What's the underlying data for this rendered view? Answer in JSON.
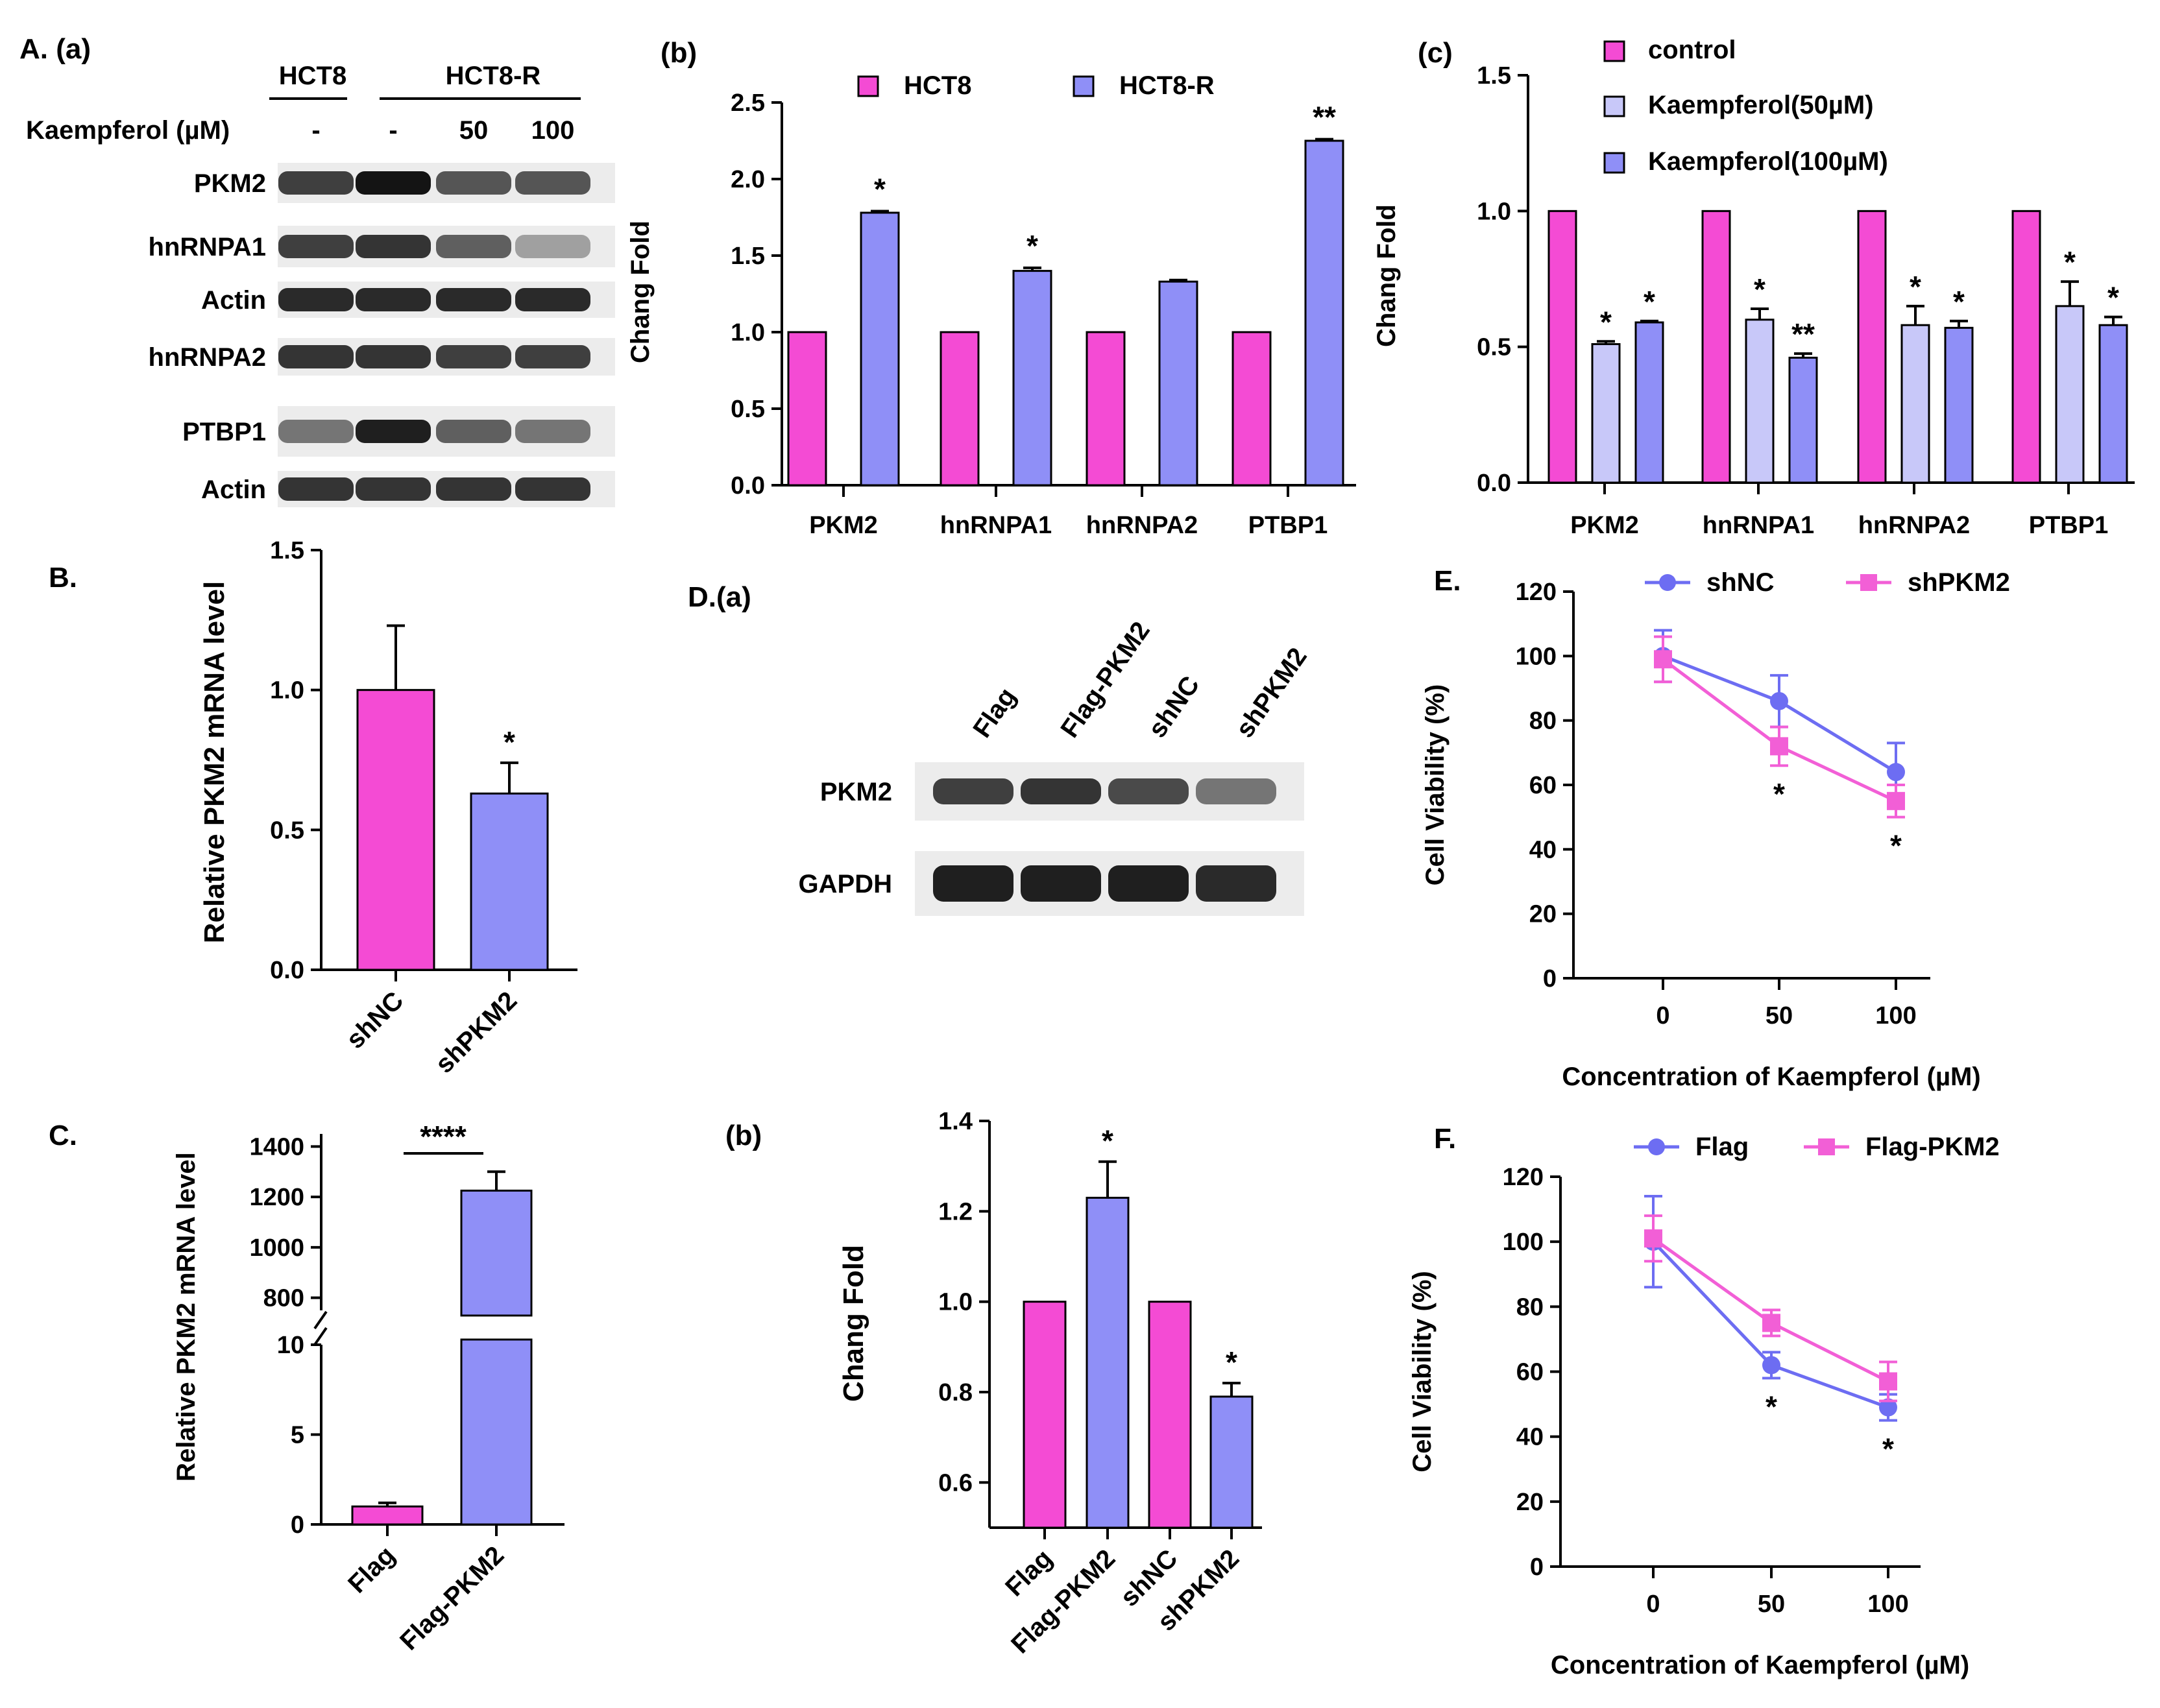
{
  "colors": {
    "magenta": "#f44bd4",
    "purple": "#8f8ff7",
    "light_purple": "#c8c8f9",
    "line_blue": "#6d6df2",
    "line_pink": "#f25fd6",
    "band_dark": "#1e1e1e",
    "band_bg": "#ececec"
  },
  "westerns": [
    {
      "id": "A_a",
      "panel_label": "A. (a)",
      "group_labels": [
        "HCT8",
        "HCT8-R"
      ],
      "treatment_label": "Kaempferol (µM)",
      "treatment_values": [
        "-",
        "-",
        "50",
        "100"
      ],
      "rows": [
        {
          "label": "PKM2",
          "intensity": [
            0.8,
            1.0,
            0.7,
            0.7
          ]
        },
        {
          "label": "hnRNPA1",
          "intensity": [
            0.8,
            0.85,
            0.65,
            0.35
          ]
        },
        {
          "label": "Actin",
          "intensity": [
            0.9,
            0.9,
            0.9,
            0.9
          ]
        },
        {
          "label": "hnRNPA2",
          "intensity": [
            0.85,
            0.85,
            0.8,
            0.8
          ]
        },
        {
          "label": "PTBP1",
          "intensity": [
            0.55,
            0.95,
            0.65,
            0.55
          ]
        },
        {
          "label": "Actin",
          "intensity": [
            0.85,
            0.85,
            0.85,
            0.85
          ]
        }
      ]
    },
    {
      "id": "D_a",
      "panel_label": "D.(a)",
      "lane_labels": [
        "Flag",
        "Flag-PKM2",
        "shNC",
        "shPKM2"
      ],
      "rows": [
        {
          "label": "PKM2",
          "intensity": [
            0.8,
            0.85,
            0.75,
            0.55
          ]
        },
        {
          "label": "GAPDH",
          "intensity": [
            0.95,
            0.95,
            0.95,
            0.9
          ]
        }
      ]
    }
  ],
  "chart_data": [
    {
      "id": "A_b",
      "panel_label": "(b)",
      "type": "bar",
      "ylabel": "Chang Fold",
      "xlabel": "",
      "categories": [
        "PKM2",
        "hnRNPA1",
        "hnRNPA2",
        "PTBP1"
      ],
      "series": [
        {
          "name": "HCT8",
          "color": "#f44bd4",
          "values": [
            1.0,
            1.0,
            1.0,
            1.0
          ],
          "errors": [
            0,
            0,
            0,
            0
          ]
        },
        {
          "name": "HCT8-R",
          "color": "#8f8ff7",
          "values": [
            1.78,
            1.4,
            1.33,
            2.25
          ],
          "errors": [
            0.01,
            0.02,
            0.01,
            0.01
          ]
        }
      ],
      "ylim": [
        0,
        2.5
      ],
      "yticks": [
        "0.0",
        "0.5",
        "1.0",
        "1.5",
        "2.0",
        "2.5"
      ],
      "annotations": [
        {
          "series": 1,
          "category": 0,
          "text": "*"
        },
        {
          "series": 1,
          "category": 1,
          "text": "*"
        },
        {
          "series": 1,
          "category": 3,
          "text": "**"
        }
      ]
    },
    {
      "id": "A_c",
      "panel_label": "(c)",
      "type": "bar",
      "ylabel": "Chang Fold",
      "xlabel": "",
      "categories": [
        "PKM2",
        "hnRNPA1",
        "hnRNPA2",
        "PTBP1"
      ],
      "series": [
        {
          "name": "control",
          "color": "#f44bd4",
          "values": [
            1.0,
            1.0,
            1.0,
            1.0
          ],
          "errors": [
            0,
            0,
            0,
            0
          ]
        },
        {
          "name": "Kaempferol(50µM)",
          "color": "#c8c8f9",
          "values": [
            0.51,
            0.6,
            0.58,
            0.65
          ],
          "errors": [
            0.01,
            0.04,
            0.07,
            0.09
          ]
        },
        {
          "name": "Kaempferol(100µM)",
          "color": "#8f8ff7",
          "values": [
            0.59,
            0.46,
            0.57,
            0.58
          ],
          "errors": [
            0.005,
            0.015,
            0.025,
            0.03
          ]
        }
      ],
      "ylim": [
        0,
        1.5
      ],
      "yticks": [
        "0.0",
        "0.5",
        "1.0",
        "1.5"
      ],
      "annotations": [
        {
          "series": 1,
          "category": 0,
          "text": "*"
        },
        {
          "series": 2,
          "category": 0,
          "text": "*"
        },
        {
          "series": 1,
          "category": 1,
          "text": "*"
        },
        {
          "series": 2,
          "category": 1,
          "text": "**"
        },
        {
          "series": 1,
          "category": 2,
          "text": "*"
        },
        {
          "series": 2,
          "category": 2,
          "text": "*"
        },
        {
          "series": 1,
          "category": 3,
          "text": "*"
        },
        {
          "series": 2,
          "category": 3,
          "text": "*"
        }
      ]
    },
    {
      "id": "B",
      "panel_label": "B.",
      "type": "bar",
      "ylabel": "Relative PKM2 mRNA level",
      "xlabel": "",
      "categories": [
        "shNC",
        "shPKM2"
      ],
      "values": [
        1.0,
        0.63
      ],
      "errors": [
        0.23,
        0.11
      ],
      "colors": [
        "#f44bd4",
        "#8f8ff7"
      ],
      "ylim": [
        0,
        1.5
      ],
      "yticks": [
        "0.0",
        "0.5",
        "1.0",
        "1.5"
      ],
      "annotations": [
        {
          "category": 1,
          "text": "*"
        }
      ]
    },
    {
      "id": "C",
      "panel_label": "C.",
      "type": "bar",
      "ylabel": "Relative PKM2 mRNA level",
      "xlabel": "",
      "categories": [
        "Flag",
        "Flag-PKM2"
      ],
      "values": [
        1.0,
        1225
      ],
      "errors": [
        0.2,
        75
      ],
      "colors": [
        "#f44bd4",
        "#8f8ff7"
      ],
      "axis_break": true,
      "lower_ylim": [
        0,
        10
      ],
      "lower_yticks": [
        "0",
        "5",
        "10"
      ],
      "upper_ylim": [
        750,
        1450
      ],
      "upper_yticks": [
        "800",
        "1000",
        "1200",
        "1400"
      ],
      "significance": "****"
    },
    {
      "id": "D_b",
      "panel_label": "(b)",
      "type": "bar",
      "ylabel": "Chang Fold",
      "xlabel": "",
      "categories": [
        "Flag",
        "Flag-PKM2",
        "shNC",
        "shPKM2"
      ],
      "values": [
        1.0,
        1.23,
        1.0,
        0.79
      ],
      "errors": [
        0,
        0.08,
        0,
        0.03
      ],
      "colors": [
        "#f44bd4",
        "#8f8ff7",
        "#f44bd4",
        "#8f8ff7"
      ],
      "ylim": [
        0.5,
        1.4
      ],
      "yticks": [
        "0.6",
        "0.8",
        "1.0",
        "1.2",
        "1.4"
      ],
      "annotations": [
        {
          "category": 1,
          "text": "*"
        },
        {
          "category": 3,
          "text": "*"
        }
      ]
    },
    {
      "id": "E",
      "panel_label": "E.",
      "type": "line",
      "xlabel": "Concentration of Kaempferol (µM)",
      "ylabel": "Cell Viability (%)",
      "x": [
        "0",
        "50",
        "100"
      ],
      "series": [
        {
          "name": "shNC",
          "color": "#6d6df2",
          "marker": "circle",
          "values": [
            100,
            86,
            64
          ],
          "errors": [
            8,
            8,
            9
          ]
        },
        {
          "name": "shPKM2",
          "color": "#f25fd6",
          "marker": "square",
          "values": [
            99,
            72,
            55
          ],
          "errors": [
            7,
            6,
            5
          ]
        }
      ],
      "ylim": [
        0,
        120
      ],
      "yticks": [
        "0",
        "20",
        "40",
        "60",
        "80",
        "100",
        "120"
      ],
      "annotations": [
        {
          "x_index": 1,
          "text": "*"
        },
        {
          "x_index": 2,
          "text": "*"
        }
      ]
    },
    {
      "id": "F",
      "panel_label": "F.",
      "type": "line",
      "xlabel": "Concentration of Kaempferol (µM)",
      "ylabel": "Cell Viability (%)",
      "x": [
        "0",
        "50",
        "100"
      ],
      "series": [
        {
          "name": "Flag",
          "color": "#6d6df2",
          "marker": "circle",
          "values": [
            100,
            62,
            49
          ],
          "errors": [
            14,
            4,
            4
          ]
        },
        {
          "name": "Flag-PKM2",
          "color": "#f25fd6",
          "marker": "square",
          "values": [
            101,
            75,
            57
          ],
          "errors": [
            7,
            4,
            6
          ]
        }
      ],
      "ylim": [
        0,
        120
      ],
      "yticks": [
        "0",
        "20",
        "40",
        "60",
        "80",
        "100",
        "120"
      ],
      "annotations": [
        {
          "x_index": 1,
          "text": "*"
        },
        {
          "x_index": 2,
          "text": "*"
        }
      ]
    }
  ]
}
